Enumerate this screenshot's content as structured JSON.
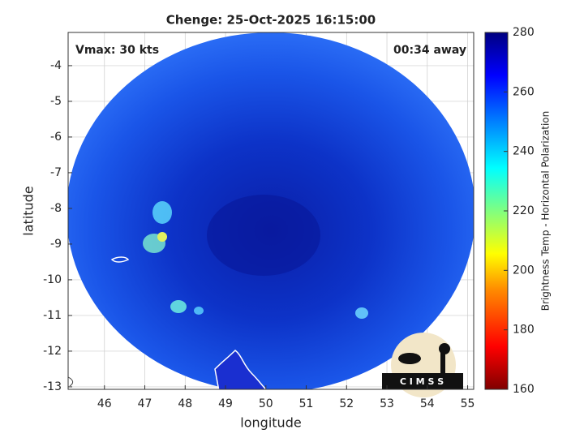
{
  "chart_data": {
    "type": "map",
    "title": "Chenge: 25-Oct-2025 16:15:00",
    "xlabel": "longitude",
    "ylabel": "latitude",
    "annotations": [
      "Vmax: 30 kts",
      "00:34 away"
    ],
    "logo_text": "C I M S S",
    "xlim": [
      45.1,
      55.15
    ],
    "ylim": [
      -13.07,
      -3.07
    ],
    "xticks": [
      46,
      47,
      48,
      49,
      50,
      51,
      52,
      53,
      54,
      55
    ],
    "yticks": [
      -4,
      -5,
      -6,
      -7,
      -8,
      -9,
      -10,
      -11,
      -12,
      -13
    ],
    "grid": true,
    "colorbar": {
      "label": "Brightness Temp - Horizontal Polarization",
      "clim": [
        160,
        280
      ],
      "ticks": [
        160,
        180,
        200,
        220,
        240,
        260,
        280
      ]
    }
  }
}
